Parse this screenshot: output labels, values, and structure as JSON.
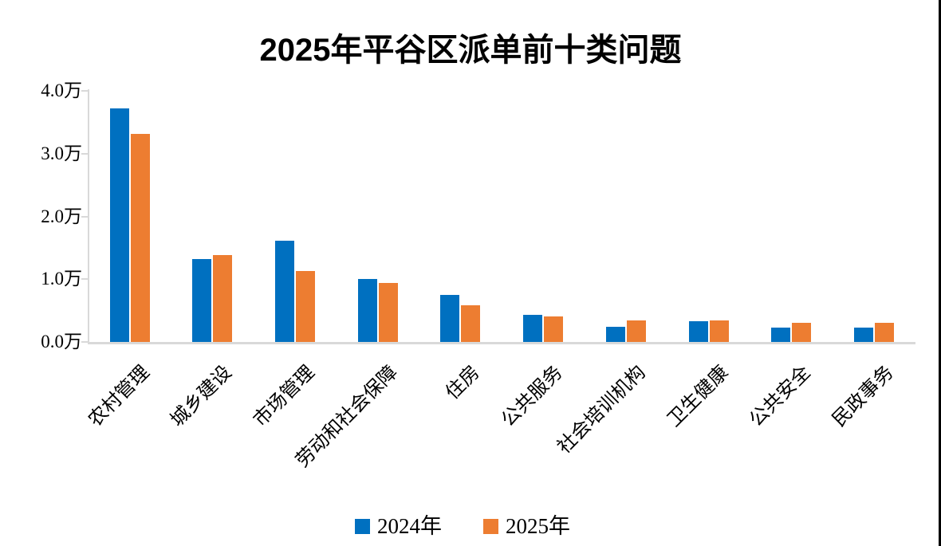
{
  "chart_data": {
    "type": "bar",
    "title": "2025年平谷区派单前十类问题",
    "categories": [
      "农村管理",
      "城乡建设",
      "市场管理",
      "劳动和社会保障",
      "住房",
      "公共服务",
      "社会培训机构",
      "卫生健康",
      "公共安全",
      "民政事务"
    ],
    "series": [
      {
        "name": "2024年",
        "color": "#0070C0",
        "values": [
          3.72,
          1.32,
          1.61,
          1.0,
          0.75,
          0.43,
          0.24,
          0.33,
          0.23,
          0.23
        ]
      },
      {
        "name": "2025年",
        "color": "#ED7D31",
        "values": [
          3.31,
          1.39,
          1.13,
          0.94,
          0.58,
          0.4,
          0.34,
          0.34,
          0.31,
          0.3
        ]
      }
    ],
    "unit": "万",
    "y_ticks": [
      "4.0万",
      "3.0万",
      "2.0万",
      "1.0万",
      "0.0万"
    ],
    "ylim": [
      0,
      4
    ],
    "grid": false,
    "legend_position": "bottom"
  },
  "colors": {
    "axis": "#D9D9D9",
    "text": "#000000",
    "background": "#FFFFFF",
    "series_2024": "#0070C0",
    "series_2025": "#ED7D31"
  }
}
